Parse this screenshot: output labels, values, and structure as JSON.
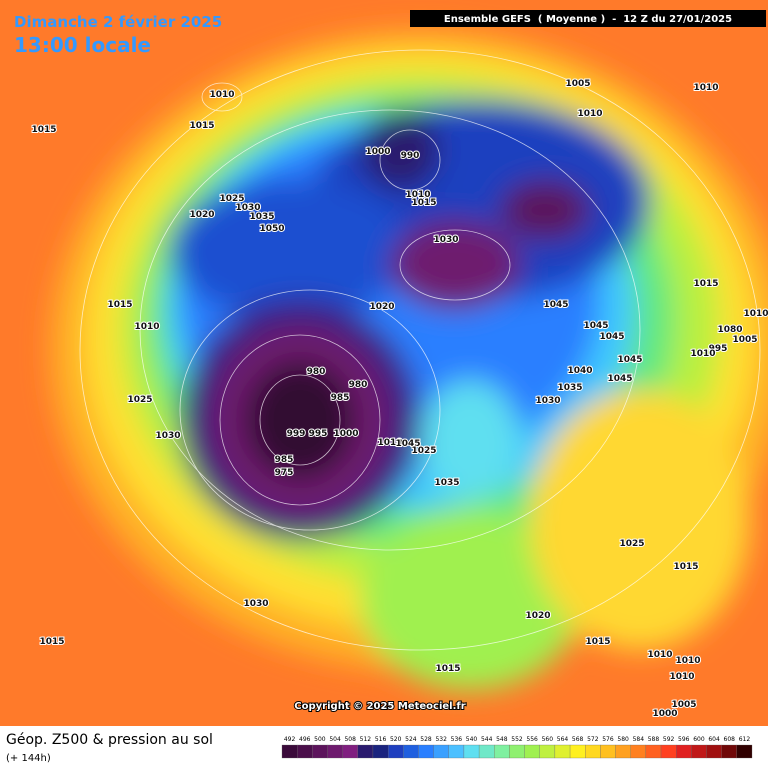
{
  "header": {
    "date": "Dimanche 2 février 2025",
    "time": "13:00 locale",
    "run": "Ensemble GEFS  ( Moyenne )  -  12 Z du 27/01/2025"
  },
  "map": {
    "isobar_labels": [
      1010,
      1015,
      1015,
      1005,
      1010,
      1000,
      990,
      1010,
      1025,
      1030,
      1020,
      1035,
      1050,
      1010,
      1015,
      1030,
      1020,
      1045,
      1015,
      1015,
      1010,
      1045,
      1045,
      1080,
      1010,
      1005,
      995,
      1010,
      1045,
      1040,
      1045,
      1035,
      1030,
      980,
      980,
      985,
      1025,
      1030,
      999,
      995,
      1000,
      985,
      975,
      1010,
      1045,
      1025,
      1035,
      1025,
      1015,
      1030,
      1020,
      1015,
      1015,
      1010,
      1010,
      1015,
      1010,
      1005,
      1000
    ],
    "copyright": "Copyright © 2025 Meteociel.fr"
  },
  "footer": {
    "title": "Géop. Z500 & pression au sol",
    "lead": "(+ 144h)"
  },
  "legend": {
    "values": [
      492,
      496,
      500,
      504,
      508,
      512,
      516,
      520,
      524,
      528,
      532,
      536,
      540,
      544,
      548,
      552,
      556,
      560,
      564,
      568,
      572,
      576,
      580,
      584,
      588,
      592,
      596,
      600,
      604,
      608,
      612
    ],
    "colors": [
      "#3a0a3a",
      "#4b0f4b",
      "#5c145c",
      "#6e1a6e",
      "#801f80",
      "#2a1a6e",
      "#1a237e",
      "#1f3fbf",
      "#1f5fdf",
      "#2a7fff",
      "#3aa0ff",
      "#4cc0ff",
      "#5fdff0",
      "#6fe8c8",
      "#7ff0a0",
      "#8ff070",
      "#9ff050",
      "#bff040",
      "#dff030",
      "#fff020",
      "#ffd820",
      "#ffc020",
      "#ffa020",
      "#ff8020",
      "#ff6020",
      "#ff4020",
      "#e02020",
      "#c01818",
      "#a01010",
      "#700808",
      "#300000"
    ]
  }
}
